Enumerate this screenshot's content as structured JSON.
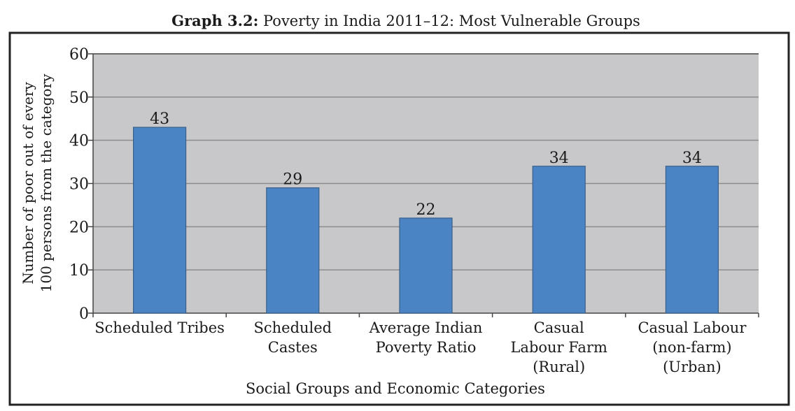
{
  "chart_data": {
    "type": "bar",
    "title_bold": "Graph 3.2:",
    "title": "Poverty in India 2011–12: Most Vulnerable Groups",
    "xlabel": "Social Groups and Economic Categories",
    "ylabel": [
      "Number of poor out of every",
      "100 persons  from the category"
    ],
    "categories": [
      [
        "Scheduled  Tribes"
      ],
      [
        "Scheduled",
        "Castes"
      ],
      [
        "Average Indian",
        "Poverty Ratio"
      ],
      [
        "Casual",
        "Labour Farm",
        "(Rural)"
      ],
      [
        "Casual Labour",
        "(non-farm)",
        "(Urban)"
      ]
    ],
    "values": [
      43,
      29,
      22,
      34,
      34
    ],
    "data_labels": [
      "43",
      "29",
      "22",
      "34",
      "34"
    ],
    "ylim": [
      0,
      60
    ],
    "yticks": [
      0,
      10,
      20,
      30,
      40,
      50,
      60
    ],
    "grid": true,
    "legend": "none",
    "colors": {
      "bar": "#4a84c4",
      "bar_edge": "#3a5f8a",
      "plot_bg": "#c8c8ca",
      "grid": "#8c8c8c"
    }
  }
}
